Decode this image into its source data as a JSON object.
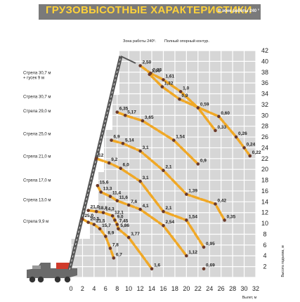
{
  "header": {
    "title": "ГРУЗОВЫСОТНЫЕ ХАРАКТЕРИСТИКИ",
    "subtitle": "В зоне работы 240 °"
  },
  "annotations": {
    "zone": "Зона работы 240º.",
    "support": "Полный опорный контур."
  },
  "colors": {
    "curve": "#f0a826",
    "point": "#6b3a2a",
    "banner": "#7a7a7a",
    "title": "#ffd23a",
    "grid_fill": "#d6d6d6",
    "grid_line": "#ffffff"
  },
  "chart_data": {
    "type": "line",
    "xlabel": "Вылет, м",
    "ylabel": "Высота подъема, м",
    "xlim": [
      0,
      32
    ],
    "ylim": [
      0,
      42
    ],
    "x_ticks": [
      0,
      2,
      4,
      6,
      8,
      10,
      12,
      14,
      16,
      18,
      20,
      22,
      24,
      26,
      28,
      30,
      32
    ],
    "y_ticks": [
      2,
      4,
      6,
      8,
      10,
      12,
      14,
      16,
      18,
      20,
      22,
      24,
      26,
      28,
      30,
      32,
      34,
      36,
      38,
      40,
      42
    ],
    "grid": true,
    "boom_labels": [
      {
        "text": "Стрела 30,7 м",
        "y": 37.9
      },
      {
        "text": "+ гусек 9 м",
        "y": 37.0
      },
      {
        "text": "Стрела 30,7 м",
        "y": 33.5
      },
      {
        "text": "Стрела 29,0 м",
        "y": 30.8
      },
      {
        "text": "Стрела 25,0 м",
        "y": 26.6
      },
      {
        "text": "Стрела 21,0 м",
        "y": 22.4
      },
      {
        "text": "Стрела 17,0 м",
        "y": 18.0
      },
      {
        "text": "Стрела 13,0 м",
        "y": 14.4
      },
      {
        "text": "Стрела 9,9 м",
        "y": 10.4
      }
    ],
    "series": [
      {
        "points": [
          {
            "x": 12.0,
            "y": 39.2,
            "label": "2,50"
          },
          {
            "x": 13.8,
            "y": 37.8,
            "label": "2,23"
          },
          {
            "x": 16.0,
            "y": 36.6,
            "label": "1,61"
          },
          {
            "x": 19.0,
            "y": 34.4,
            "label": "1,0"
          },
          {
            "x": 22.0,
            "y": 31.4,
            "label": "0,59"
          },
          {
            "x": 25.0,
            "y": 27.2,
            "label": "0,33"
          }
        ]
      },
      {
        "points": [
          {
            "x": 13.6,
            "y": 37.6,
            "label": "1,90"
          },
          {
            "x": 15.8,
            "y": 35.3,
            "label": "1,32"
          },
          {
            "x": 18.8,
            "y": 33.0,
            "label": "0,9"
          },
          {
            "x": 25.6,
            "y": 29.8,
            "label": "0,60"
          },
          {
            "x": 28.6,
            "y": 26.0,
            "label": "0,26"
          },
          {
            "x": 30.0,
            "y": 24.0,
            "label": "0,24"
          },
          {
            "x": 31.0,
            "y": 22.5,
            "label": "0,22"
          }
        ]
      },
      {
        "points": [
          {
            "x": 8.0,
            "y": 30.6,
            "label": "6,35"
          },
          {
            "x": 9.4,
            "y": 30.0,
            "label": "5,17"
          },
          {
            "x": 12.4,
            "y": 29.0,
            "label": "3,65"
          },
          {
            "x": 17.8,
            "y": 25.4,
            "label": "1,54"
          },
          {
            "x": 22.0,
            "y": 21.0,
            "label": "0,9"
          }
        ]
      },
      {
        "points": [
          {
            "x": 7.0,
            "y": 25.4,
            "label": "6,9"
          },
          {
            "x": 9.0,
            "y": 24.8,
            "label": "5,14"
          },
          {
            "x": 12.0,
            "y": 23.4,
            "label": "3,1"
          },
          {
            "x": 16.0,
            "y": 19.8,
            "label": "2,1"
          },
          {
            "x": 20.0,
            "y": 15.4,
            "label": "1,39"
          },
          {
            "x": 25.0,
            "y": 13.6,
            "label": "0,42"
          },
          {
            "x": 26.6,
            "y": 10.6,
            "label": "0,35"
          }
        ]
      },
      {
        "points": [
          {
            "x": 4.4,
            "y": 22.0,
            "label": "12"
          },
          {
            "x": 6.6,
            "y": 21.2,
            "label": "9,2"
          },
          {
            "x": 8.6,
            "y": 20.2,
            "label": "6,0"
          },
          {
            "x": 12.0,
            "y": 17.8,
            "label": "3,1"
          },
          {
            "x": 16.0,
            "y": 12.2,
            "label": "2,1"
          },
          {
            "x": 20.0,
            "y": 10.6,
            "label": "1,54"
          },
          {
            "x": 23.0,
            "y": 5.6,
            "label": "0,95"
          }
        ]
      },
      {
        "points": [
          {
            "x": 4.6,
            "y": 17.0,
            "label": "15,6"
          },
          {
            "x": 5.2,
            "y": 15.8,
            "label": "13,3"
          },
          {
            "x": 6.8,
            "y": 15.0,
            "label": "11,4"
          },
          {
            "x": 8.0,
            "y": 14.2,
            "label": "11,6"
          },
          {
            "x": 10.0,
            "y": 13.4,
            "label": "7,6"
          },
          {
            "x": 12.0,
            "y": 12.6,
            "label": "4,1"
          },
          {
            "x": 16.0,
            "y": 9.6,
            "label": "2,54"
          },
          {
            "x": 20.0,
            "y": 4.0,
            "label": "1,12"
          }
        ]
      },
      {
        "points": [
          {
            "x": 3.0,
            "y": 12.4,
            "label": "21,0"
          },
          {
            "x": 4.4,
            "y": 12.2,
            "label": "18,8"
          },
          {
            "x": 5.6,
            "y": 12.0,
            "label": "14,3"
          },
          {
            "x": 7.2,
            "y": 11.4,
            "label": "12,1"
          },
          {
            "x": 7.6,
            "y": 10.6,
            "label": "9,0"
          },
          {
            "x": 8.0,
            "y": 9.8,
            "label": "7,45"
          },
          {
            "x": 8.2,
            "y": 9.0,
            "label": "5,86"
          },
          {
            "x": 10.0,
            "y": 7.4,
            "label": "3,77"
          },
          {
            "x": 14.0,
            "y": 1.6,
            "label": "1,6"
          }
        ]
      },
      {
        "points": [
          {
            "x": 2.0,
            "y": 10.8,
            "label": "25,0"
          },
          {
            "x": 3.0,
            "y": 10.2,
            "label": "20,5"
          },
          {
            "x": 4.0,
            "y": 9.8,
            "label": "21,5"
          },
          {
            "x": 5.0,
            "y": 9.0,
            "label": "15,7"
          },
          {
            "x": 6.0,
            "y": 7.6,
            "label": "8,9"
          },
          {
            "x": 6.8,
            "y": 5.4,
            "label": "7,8"
          },
          {
            "x": 7.4,
            "y": 3.6,
            "label": "6,7"
          }
        ]
      },
      {
        "points": [
          {
            "x": 23.0,
            "y": 1.6,
            "label": "0,69"
          }
        ]
      }
    ]
  }
}
